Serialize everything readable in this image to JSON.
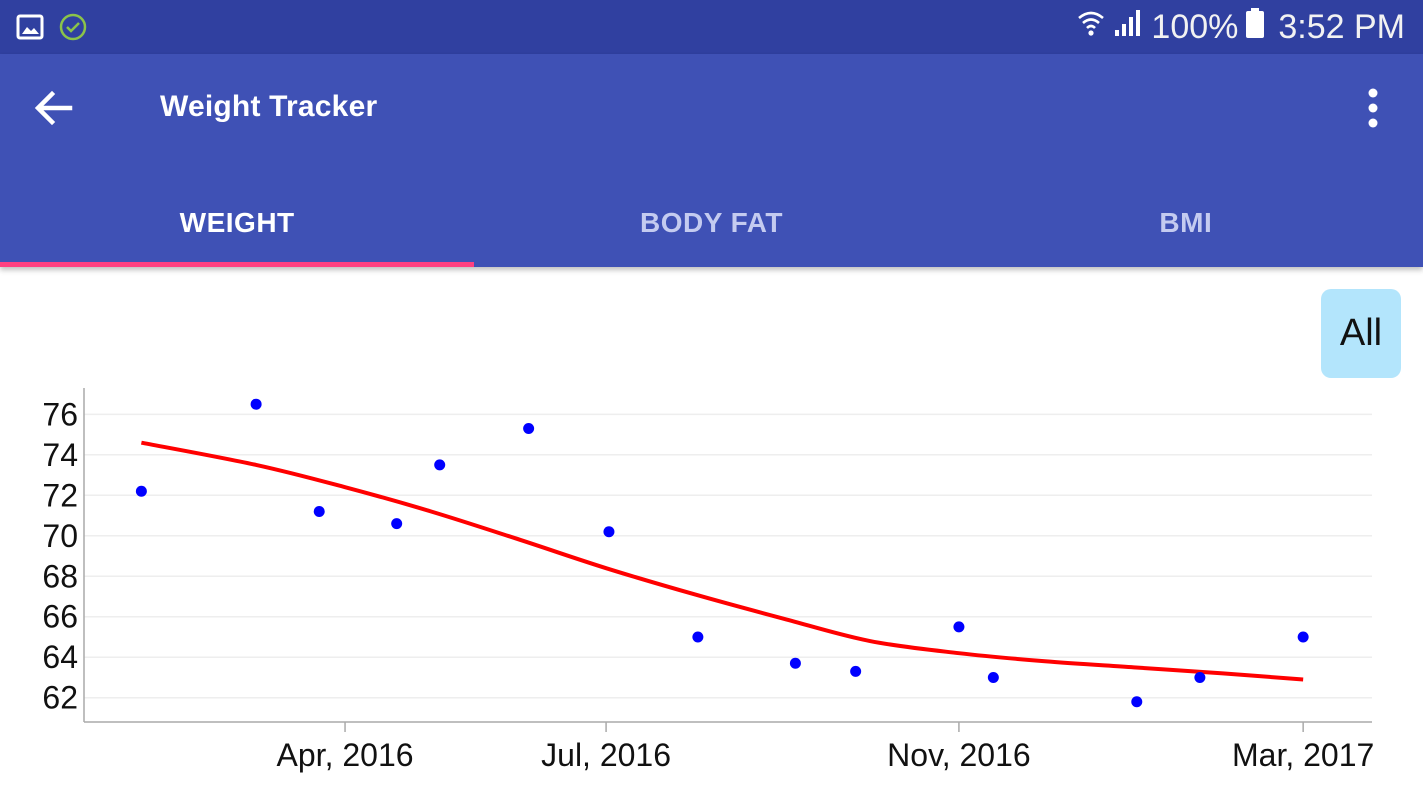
{
  "status_bar": {
    "battery": "100%",
    "time": "3:52 PM",
    "left_icons": [
      "image-icon",
      "check-circle-icon"
    ],
    "right_icons": [
      "wifi-icon",
      "signal-icon",
      "battery-icon"
    ]
  },
  "app_bar": {
    "title": "Weight Tracker",
    "back_icon": "arrow-back-icon",
    "menu_icon": "more-vert-icon"
  },
  "tabs": [
    {
      "label": "WEIGHT",
      "active": true
    },
    {
      "label": "BODY FAT",
      "active": false
    },
    {
      "label": "BMI",
      "active": false
    }
  ],
  "range_button": {
    "label": "All"
  },
  "colors": {
    "status_bar": "#3040a0",
    "app_bar": "#3f51b5",
    "tab_indicator": "#ff4081",
    "range_button": "#b3e5fc",
    "points": "#0000ff",
    "trend": "#ff0000"
  },
  "chart_data": {
    "type": "scatter",
    "title": "",
    "xlabel": "",
    "ylabel": "",
    "x_ticks": [
      "2016-04-01",
      "2016-07-01",
      "2016-11-01",
      "2017-03-01"
    ],
    "x_tick_labels": [
      "Apr, 2016",
      "Jul, 2016",
      "Nov, 2016",
      "Mar, 2017"
    ],
    "y_ticks": [
      62,
      64,
      66,
      68,
      70,
      72,
      74,
      76
    ],
    "xlim": [
      "2016-01-01",
      "2017-03-25"
    ],
    "ylim": [
      60.8,
      77.3
    ],
    "grid": true,
    "series": [
      {
        "kind": "points",
        "x": [
          "2016-01-21",
          "2016-03-01",
          "2016-03-23",
          "2016-04-19",
          "2016-05-04",
          "2016-06-04",
          "2016-07-02",
          "2016-08-02",
          "2016-09-05",
          "2016-09-26",
          "2016-11-01",
          "2016-11-13",
          "2017-01-02",
          "2017-01-24",
          "2017-03-01"
        ],
        "y": [
          72.2,
          76.5,
          71.2,
          70.6,
          73.5,
          75.3,
          70.2,
          65.0,
          63.7,
          63.3,
          65.5,
          63.0,
          61.8,
          63.0,
          65.0
        ]
      },
      {
        "kind": "trend",
        "x": [
          "2016-01-21",
          "2016-03-01",
          "2016-04-01",
          "2016-05-01",
          "2016-06-01",
          "2016-07-01",
          "2016-08-01",
          "2016-09-01",
          "2016-10-01",
          "2016-11-01",
          "2016-12-01",
          "2017-01-01",
          "2017-02-01",
          "2017-03-01"
        ],
        "y": [
          74.6,
          73.5,
          72.4,
          71.2,
          69.8,
          68.4,
          67.1,
          65.9,
          64.8,
          64.2,
          63.8,
          63.5,
          63.2,
          62.9
        ]
      }
    ]
  }
}
